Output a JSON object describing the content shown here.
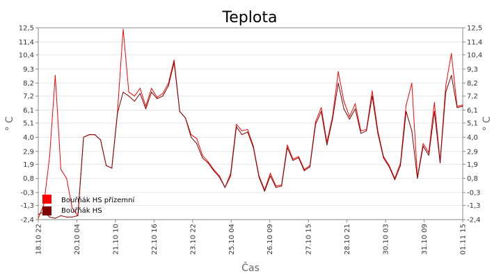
{
  "chart_data": {
    "type": "line",
    "title": "Teplota",
    "xlabel": "Čas",
    "ylabel": "° C",
    "ylim": [
      -2.4,
      12.5
    ],
    "yticks": [
      "12,5",
      "11,4",
      "10,4",
      "9,3",
      "8,2",
      "7,2",
      "6,1",
      "5,1",
      "4,0",
      "2,9",
      "1,9",
      "0,8",
      "-0,3",
      "-1,3",
      "-2,4"
    ],
    "ytick_values": [
      12.5,
      11.4,
      10.4,
      9.3,
      8.2,
      7.2,
      6.1,
      5.1,
      4.0,
      2.9,
      1.9,
      0.8,
      -0.3,
      -1.3,
      -2.4
    ],
    "xticks": [
      "18.10 22",
      "20.10 04",
      "21.10 10",
      "22.10 16",
      "23.10 22",
      "25.10 04",
      "26.10 09",
      "27.10 15",
      "28.10 21",
      "30.10 03",
      "31.10 09",
      "01.11 15"
    ],
    "grid": true,
    "legend_position": "bottom-left",
    "x_count": 76,
    "series": [
      {
        "name": "Bouřňák HS přízemní",
        "color": "#ff0000",
        "values": [
          -2.3,
          -1.2,
          2.5,
          8.8,
          1.5,
          0.8,
          -1.5,
          -2.1,
          4.0,
          4.2,
          4.2,
          3.8,
          1.8,
          1.6,
          6.0,
          12.4,
          7.5,
          7.2,
          7.8,
          6.4,
          7.8,
          7.1,
          7.4,
          8.2,
          10.0,
          6.0,
          5.5,
          4.2,
          3.9,
          2.6,
          2.1,
          1.5,
          1.0,
          0.1,
          1.2,
          5.0,
          4.5,
          4.6,
          3.3,
          1.0,
          -0.1,
          1.2,
          0.2,
          0.3,
          3.4,
          2.3,
          2.5,
          1.5,
          1.8,
          5.2,
          6.3,
          3.6,
          5.6,
          9.1,
          6.8,
          5.6,
          6.6,
          4.5,
          4.6,
          7.6,
          4.5,
          2.5,
          1.8,
          0.8,
          2.0,
          6.5,
          8.2,
          0.9,
          3.5,
          2.8,
          6.7,
          2.1,
          8.0,
          10.5,
          6.4,
          6.5
        ]
      },
      {
        "name": "Bouřňák HS",
        "color": "#800000",
        "values": [
          -2.0,
          -1.8,
          -2.2,
          -2.3,
          -2.1,
          -2.2,
          -2.2,
          -2.1,
          4.0,
          4.2,
          4.2,
          3.8,
          1.8,
          1.6,
          5.9,
          7.5,
          7.2,
          6.8,
          7.4,
          6.2,
          7.5,
          7.0,
          7.2,
          8.0,
          9.8,
          6.0,
          5.5,
          4.0,
          3.5,
          2.4,
          2.0,
          1.4,
          0.9,
          0.1,
          1.0,
          4.8,
          4.2,
          4.4,
          3.2,
          0.9,
          -0.2,
          1.0,
          0.1,
          0.2,
          3.2,
          2.2,
          2.4,
          1.4,
          1.7,
          5.0,
          6.0,
          3.4,
          5.4,
          8.2,
          6.2,
          5.4,
          6.2,
          4.3,
          4.5,
          7.2,
          4.3,
          2.4,
          1.7,
          0.7,
          1.8,
          6.0,
          4.5,
          0.8,
          3.3,
          2.6,
          6.0,
          2.0,
          7.5,
          8.8,
          6.3,
          6.4
        ]
      }
    ]
  }
}
